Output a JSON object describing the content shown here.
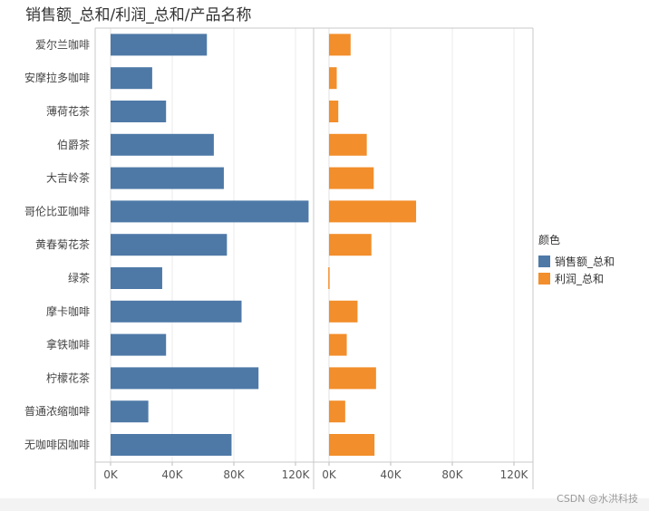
{
  "page": {
    "watermark": "CSDN @水洪科技"
  },
  "chart_data": {
    "type": "bar",
    "orientation": "horizontal",
    "title": "销售额_总和/利润_总和/产品名称",
    "categories": [
      "爱尔兰咖啡",
      "安摩拉多咖啡",
      "薄荷花茶",
      "伯爵茶",
      "大吉岭茶",
      "哥伦比亚咖啡",
      "黄春菊花茶",
      "绿茶",
      "摩卡咖啡",
      "拿铁咖啡",
      "柠檬花茶",
      "普通浓缩咖啡",
      "无咖啡因咖啡"
    ],
    "series": [
      {
        "name": "销售额_总和",
        "color": "#4e79a7",
        "values": [
          62500,
          27000,
          36000,
          67000,
          73500,
          128500,
          75500,
          33500,
          85000,
          36000,
          96000,
          24500,
          78500
        ]
      },
      {
        "name": "利润_总和",
        "color": "#f28e2b",
        "values": [
          14000,
          5000,
          6000,
          24500,
          29000,
          56500,
          27500,
          -500,
          18500,
          11500,
          30500,
          10500,
          29500
        ]
      }
    ],
    "xlim": [
      0,
      130000
    ],
    "ticks": [
      "0K",
      "40K",
      "80K",
      "120K"
    ],
    "tick_values": [
      0,
      40000,
      80000,
      120000
    ],
    "legend": {
      "title": "颜色",
      "position": "right"
    },
    "grid": true
  }
}
